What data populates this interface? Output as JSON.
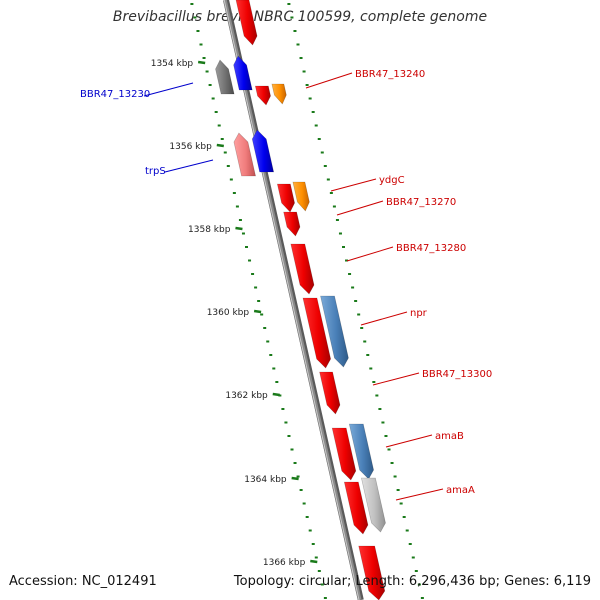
{
  "header": {
    "title": "Brevibacillus brevis NBRC 100599, complete genome"
  },
  "footer": {
    "accession": "Accession: NC_012491",
    "stats": "Topology: circular; Length: 6,296,436 bp; Genes: 6,119"
  },
  "colors": {
    "backbone": "#8a8a8a",
    "tick": "#1a7a1a",
    "label_forward_strand": "#0000cc",
    "label_reverse_strand": "#cc0000"
  },
  "ticks": [
    {
      "label": "1354 kbp"
    },
    {
      "label": "1356 kbp"
    },
    {
      "label": "1358 kbp"
    },
    {
      "label": "1360 kbp"
    },
    {
      "label": "1362 kbp"
    },
    {
      "label": "1364 kbp"
    },
    {
      "label": "1366 kbp"
    }
  ],
  "genes": [
    {
      "label": "BBR47_13230"
    },
    {
      "label": "trpS"
    },
    {
      "label": "BBR47_13240"
    },
    {
      "label": "ydgC"
    },
    {
      "label": "BBR47_13270"
    },
    {
      "label": "BBR47_13280"
    },
    {
      "label": "npr"
    },
    {
      "label": "BBR47_13300"
    },
    {
      "label": "amaB"
    },
    {
      "label": "amaA"
    }
  ]
}
